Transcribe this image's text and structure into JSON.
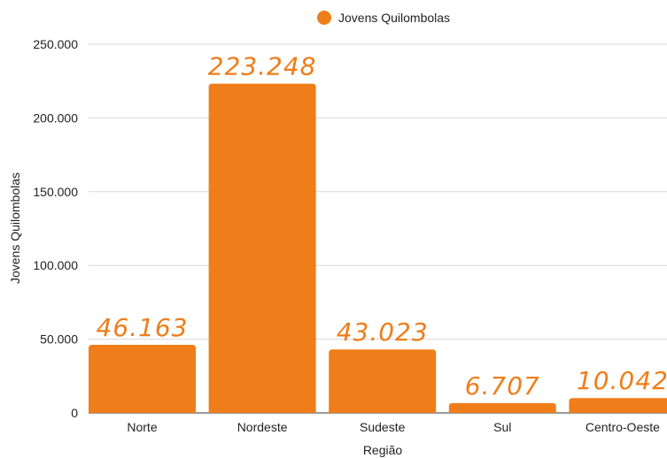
{
  "chart_data": {
    "type": "bar",
    "categories": [
      "Norte",
      "Nordeste",
      "Sudeste",
      "Sul",
      "Centro-Oeste"
    ],
    "series": [
      {
        "name": "Jovens Quilombolas",
        "values": [
          46163,
          223248,
          43023,
          6707,
          10042
        ]
      }
    ],
    "data_labels": [
      "46.163",
      "223.248",
      "43.023",
      "6.707",
      "10.042"
    ],
    "xlabel": "Região",
    "ylabel": "Jovens Quilombolas",
    "ylim": [
      0,
      250000
    ],
    "yticks": [
      "0",
      "50.000",
      "100.000",
      "150.000",
      "200.000",
      "250.000"
    ],
    "grid": true,
    "legend": "top-center",
    "color": "#EF7D1A"
  }
}
